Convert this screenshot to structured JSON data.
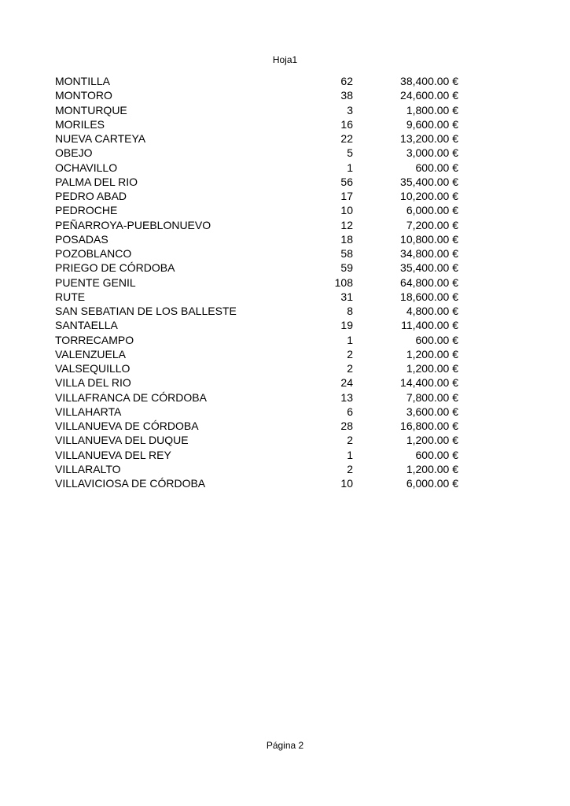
{
  "header": {
    "sheet_name": "Hoja1"
  },
  "footer": {
    "page_label": "Página 2"
  },
  "rows": [
    {
      "name": "MONTILLA",
      "count": "62",
      "amount": "38,400.00 €"
    },
    {
      "name": "MONTORO",
      "count": "38",
      "amount": "24,600.00 €"
    },
    {
      "name": "MONTURQUE",
      "count": "3",
      "amount": "1,800.00 €"
    },
    {
      "name": "MORILES",
      "count": "16",
      "amount": "9,600.00 €"
    },
    {
      "name": "NUEVA CARTEYA",
      "count": "22",
      "amount": "13,200.00 €"
    },
    {
      "name": "OBEJO",
      "count": "5",
      "amount": "3,000.00 €"
    },
    {
      "name": "OCHAVILLO",
      "count": "1",
      "amount": "600.00 €"
    },
    {
      "name": "PALMA DEL RIO",
      "count": "56",
      "amount": "35,400.00 €"
    },
    {
      "name": "PEDRO ABAD",
      "count": "17",
      "amount": "10,200.00 €"
    },
    {
      "name": "PEDROCHE",
      "count": "10",
      "amount": "6,000.00 €"
    },
    {
      "name": "PEÑARROYA-PUEBLONUEVO",
      "count": "12",
      "amount": "7,200.00 €"
    },
    {
      "name": "POSADAS",
      "count": "18",
      "amount": "10,800.00 €"
    },
    {
      "name": "POZOBLANCO",
      "count": "58",
      "amount": "34,800.00 €"
    },
    {
      "name": "PRIEGO DE CÓRDOBA",
      "count": "59",
      "amount": "35,400.00 €"
    },
    {
      "name": "PUENTE GENIL",
      "count": "108",
      "amount": "64,800.00 €"
    },
    {
      "name": "RUTE",
      "count": "31",
      "amount": "18,600.00 €"
    },
    {
      "name": "SAN SEBATIAN DE LOS BALLESTE",
      "count": "8",
      "amount": "4,800.00 €"
    },
    {
      "name": "SANTAELLA",
      "count": "19",
      "amount": "11,400.00 €"
    },
    {
      "name": "TORRECAMPO",
      "count": "1",
      "amount": "600.00 €"
    },
    {
      "name": "VALENZUELA",
      "count": "2",
      "amount": "1,200.00 €"
    },
    {
      "name": "VALSEQUILLO",
      "count": "2",
      "amount": "1,200.00 €"
    },
    {
      "name": "VILLA DEL RIO",
      "count": "24",
      "amount": "14,400.00 €"
    },
    {
      "name": "VILLAFRANCA DE CÓRDOBA",
      "count": "13",
      "amount": "7,800.00 €"
    },
    {
      "name": "VILLAHARTA",
      "count": "6",
      "amount": "3,600.00 €"
    },
    {
      "name": "VILLANUEVA DE CÓRDOBA",
      "count": "28",
      "amount": "16,800.00 €"
    },
    {
      "name": "VILLANUEVA DEL DUQUE",
      "count": "2",
      "amount": "1,200.00 €"
    },
    {
      "name": "VILLANUEVA DEL REY",
      "count": "1",
      "amount": "600.00 €"
    },
    {
      "name": "VILLARALTO",
      "count": "2",
      "amount": "1,200.00 €"
    },
    {
      "name": "VILLAVICIOSA DE CÓRDOBA",
      "count": "10",
      "amount": "6,000.00 €"
    }
  ]
}
